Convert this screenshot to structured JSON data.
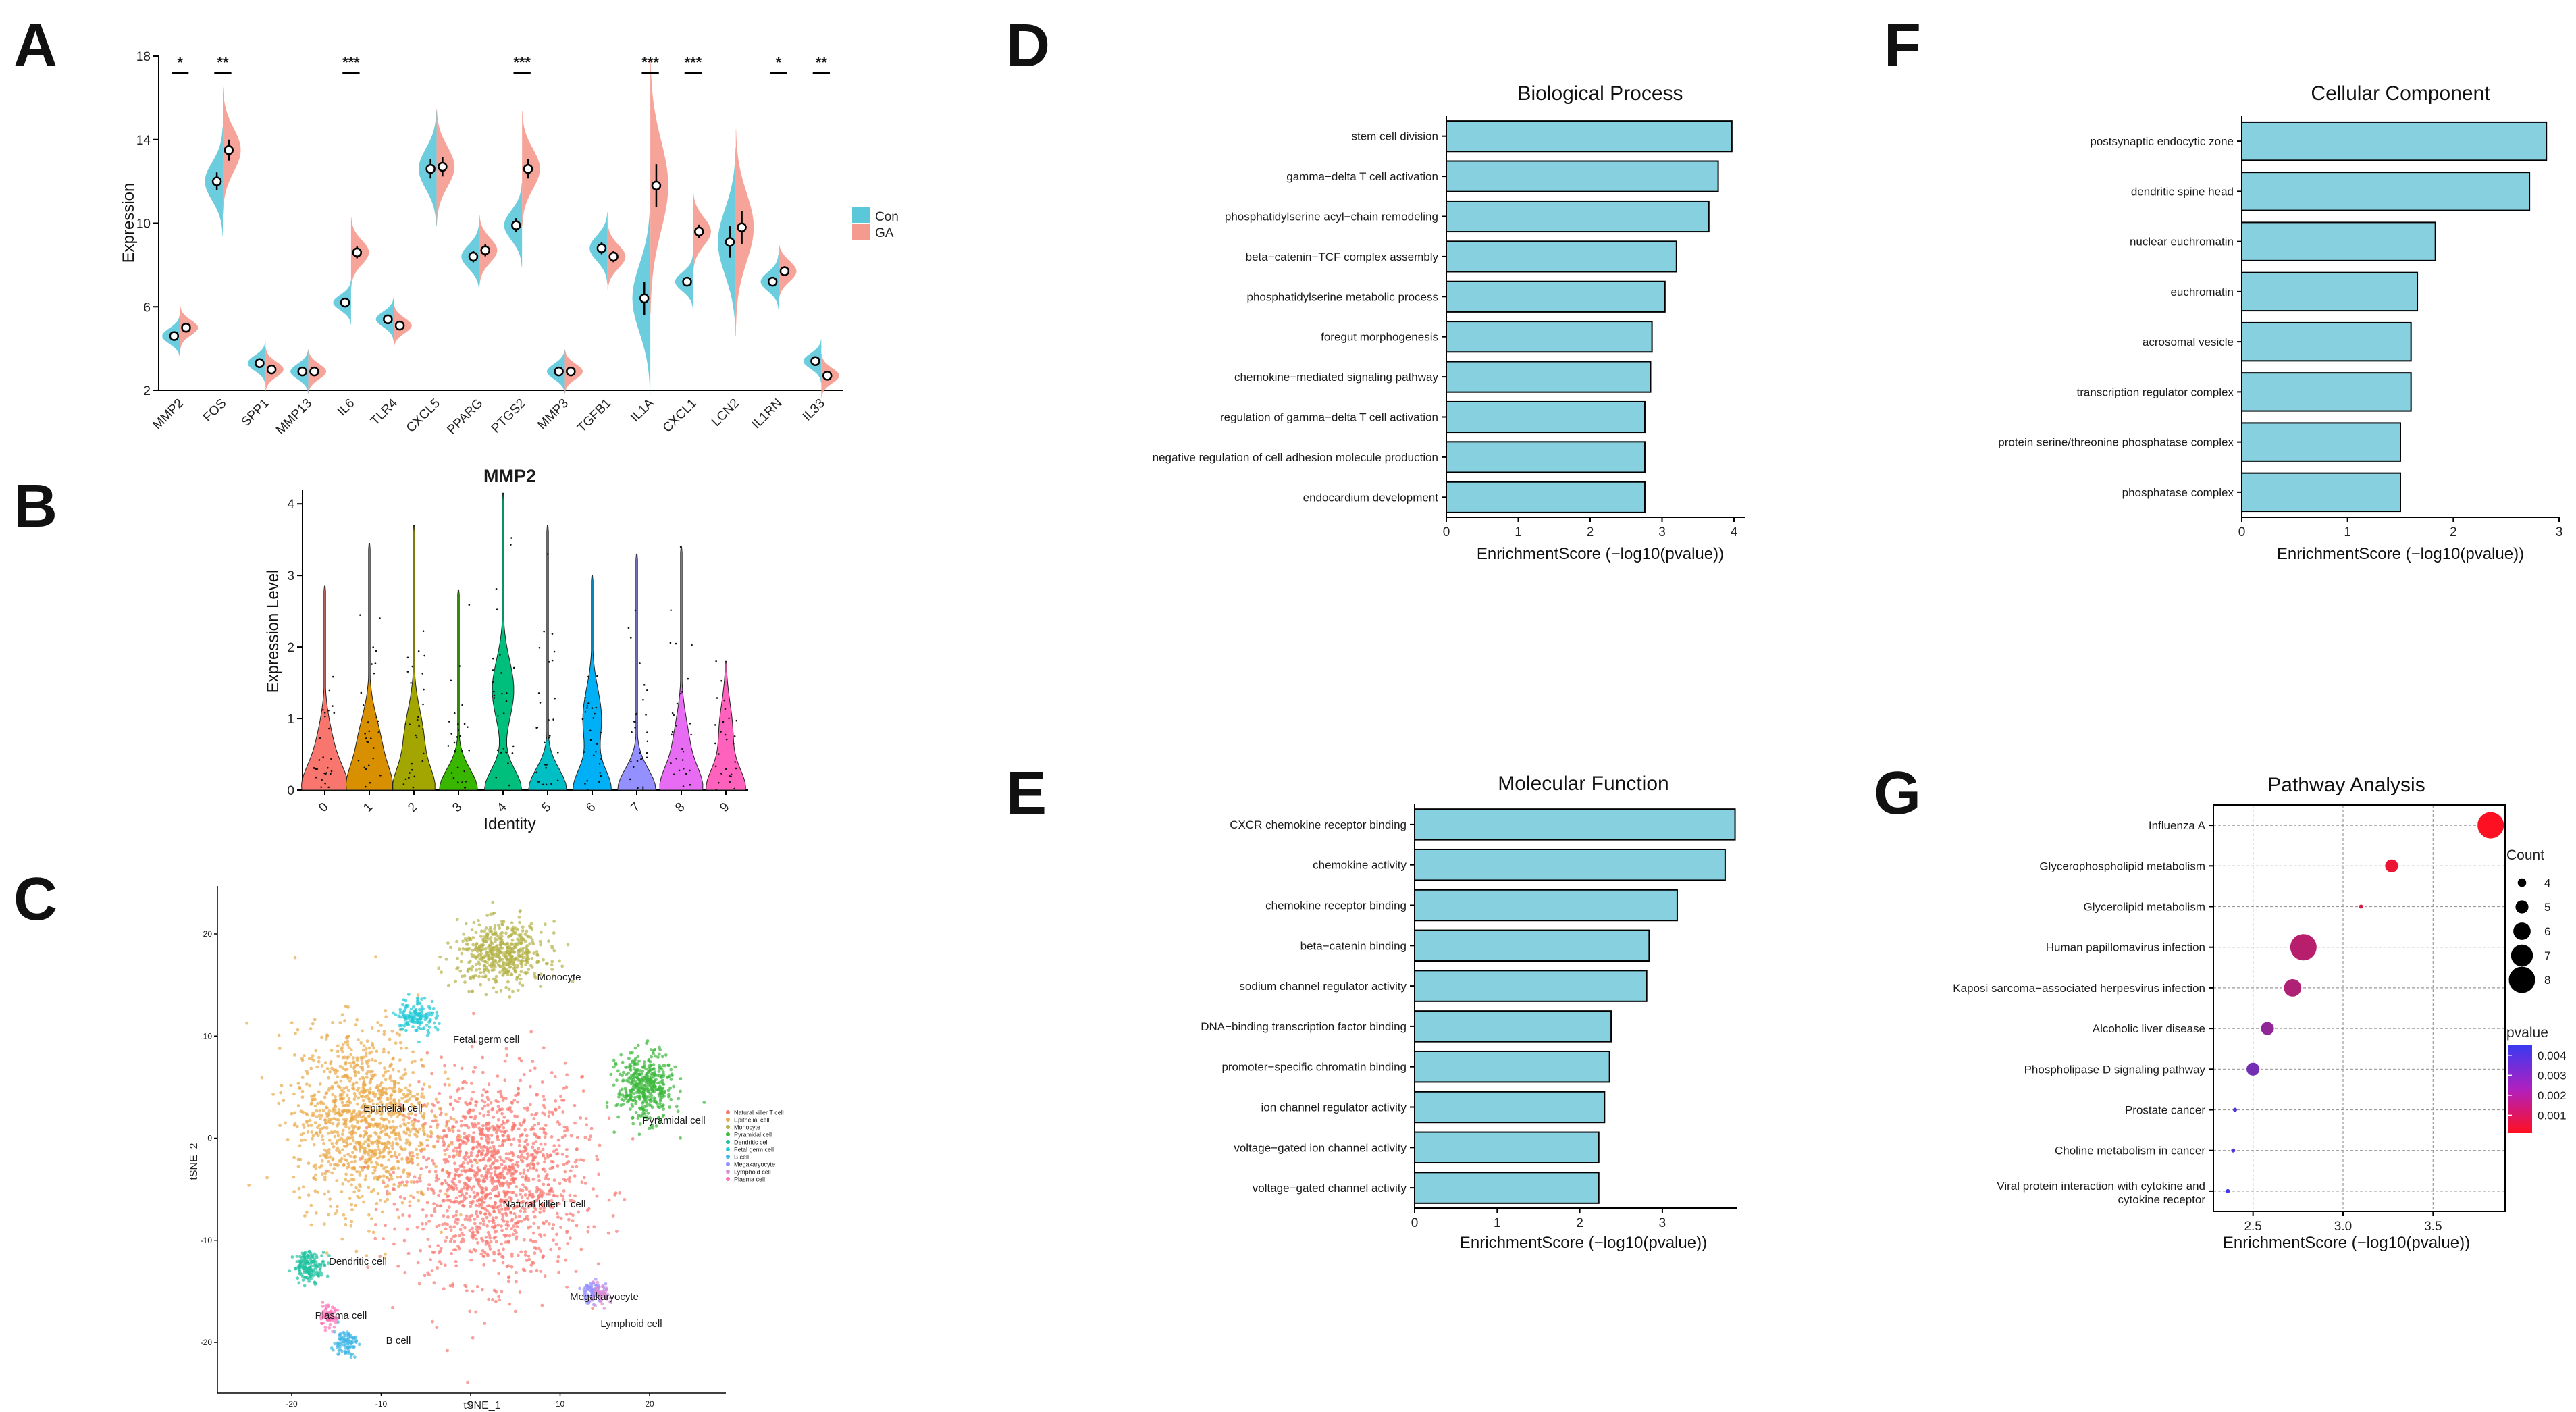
{
  "panel_letters": [
    "A",
    "B",
    "C",
    "D",
    "E",
    "F",
    "G"
  ],
  "chart_data": [
    {
      "id": "A",
      "type": "split-violin",
      "title": "",
      "xlabel": "",
      "ylabel": "Expression",
      "ylim": [
        2,
        18
      ],
      "yticks": [
        2,
        6,
        10,
        14,
        18
      ],
      "categories": [
        "MMP2",
        "FOS",
        "SPP1",
        "MMP13",
        "IL6",
        "TLR4",
        "CXCL5",
        "PPARG",
        "PTGS2",
        "MMP3",
        "TGFB1",
        "IL1A",
        "CXCL1",
        "LCN2",
        "IL1RN",
        "IL33"
      ],
      "significance": [
        "*",
        "**",
        "",
        "",
        "***",
        "",
        "",
        "",
        "***",
        "",
        "",
        "***",
        "***",
        "",
        "*",
        "**"
      ],
      "legend": [
        {
          "name": "Con",
          "color": "#5bc8d9"
        },
        {
          "name": "GA",
          "color": "#f59a8e"
        }
      ],
      "series": [
        {
          "name": "Con",
          "color": "#5bc8d9",
          "values": [
            4.6,
            12.0,
            3.3,
            2.9,
            6.2,
            5.4,
            12.6,
            8.4,
            9.9,
            2.9,
            8.8,
            6.4,
            7.2,
            9.1,
            7.2,
            3.4
          ]
        },
        {
          "name": "GA",
          "color": "#f59a8e",
          "values": [
            5.0,
            13.5,
            3.0,
            2.9,
            8.6,
            5.1,
            12.7,
            8.7,
            12.6,
            2.9,
            8.4,
            11.8,
            9.6,
            9.8,
            7.7,
            2.7
          ]
        }
      ]
    },
    {
      "id": "B",
      "type": "violin",
      "title": "MMP2",
      "xlabel": "Identity",
      "ylabel": "Expression Level",
      "ylim": [
        0,
        4.2
      ],
      "yticks": [
        0,
        1,
        2,
        3,
        4
      ],
      "categories": [
        "0",
        "1",
        "2",
        "3",
        "4",
        "5",
        "6",
        "7",
        "8",
        "9"
      ],
      "max": [
        2.85,
        3.45,
        3.7,
        2.8,
        4.15,
        3.7,
        3.0,
        3.3,
        3.4,
        1.8
      ],
      "colors": [
        "#f8766d",
        "#d89000",
        "#a3a500",
        "#39b600",
        "#00bf7d",
        "#00bfc4",
        "#00b0f6",
        "#9590ff",
        "#e76bf3",
        "#ff62bc"
      ]
    },
    {
      "id": "C",
      "type": "scatter",
      "title": "",
      "xlabel": "tSNE_1",
      "ylabel": "tSNE_2",
      "xticks": [
        -20,
        -10,
        0,
        10,
        20
      ],
      "yticks": [
        20,
        10,
        0,
        -10,
        -20
      ],
      "clusters": [
        "Natural killer T cell",
        "Epithelial cell",
        "Monocyte",
        "Pyramidal cell",
        "Dendritic cell",
        "Fetal germ cell",
        "B cell",
        "Megakaryocyte",
        "Lymphoid cell",
        "Plasma cell"
      ],
      "cluster_colors": [
        "#f8766d",
        "#e9a94a",
        "#b5b44a",
        "#3cb83c",
        "#1fc2a0",
        "#1fc9d6",
        "#41b6e6",
        "#9590ff",
        "#d88bd6",
        "#ff74b8"
      ],
      "cluster_labels": [
        "Monocyte",
        "Fetal germ cell",
        "Epithelial cell",
        "Pyramidal cell",
        "Natural killer T cell",
        "Dendritic cell",
        "Megakaryocyte",
        "Lymphoid cell",
        "Plasma cell",
        "B cell"
      ]
    },
    {
      "id": "D",
      "type": "bar",
      "orientation": "horizontal",
      "title": "Biological Process",
      "xlabel": "EnrichmentScore (−log10(pvalue))",
      "xlim": [
        0,
        4.15
      ],
      "xticks": [
        0,
        1,
        2,
        3,
        4
      ],
      "categories": [
        "stem cell division",
        "gamma−delta T cell activation",
        "phosphatidylserine acyl−chain remodeling",
        "beta−catenin−TCF complex assembly",
        "phosphatidylserine metabolic process",
        "foregut morphogenesis",
        "chemokine−mediated signaling pathway",
        "regulation of gamma−delta T cell activation",
        "negative regulation of cell adhesion molecule production",
        "endocardium development"
      ],
      "values": [
        3.97,
        3.78,
        3.65,
        3.2,
        3.04,
        2.86,
        2.84,
        2.76,
        2.76,
        2.76
      ]
    },
    {
      "id": "E",
      "type": "bar",
      "orientation": "horizontal",
      "title": "Molecular Function",
      "xlabel": "EnrichmentScore (−log10(pvalue))",
      "xlim": [
        0,
        3.9
      ],
      "xticks": [
        0,
        1,
        2,
        3
      ],
      "categories": [
        "CXCR chemokine receptor binding",
        "chemokine activity",
        "chemokine receptor binding",
        "beta−catenin binding",
        "sodium channel regulator activity",
        "DNA−binding transcription factor binding",
        "promoter−specific chromatin binding",
        "ion channel regulator activity",
        "voltage−gated ion channel activity",
        "voltage−gated channel activity"
      ],
      "values": [
        3.88,
        3.76,
        3.18,
        2.84,
        2.81,
        2.38,
        2.36,
        2.3,
        2.23,
        2.23
      ]
    },
    {
      "id": "F",
      "type": "bar",
      "orientation": "horizontal",
      "title": "Cellular Component",
      "xlabel": "EnrichmentScore (−log10(pvalue))",
      "xlim": [
        0,
        3.0
      ],
      "xticks": [
        0,
        1,
        2,
        3
      ],
      "categories": [
        "postsynaptic endocytic zone",
        "dendritic spine head",
        "nuclear euchromatin",
        "euchromatin",
        "acrosomal vesicle",
        "transcription regulator complex",
        "protein serine/threonine phosphatase complex",
        "phosphatase complex"
      ],
      "values": [
        2.88,
        2.72,
        1.83,
        1.66,
        1.6,
        1.6,
        1.5,
        1.5
      ]
    },
    {
      "id": "G",
      "type": "scatter",
      "title": "Pathway Analysis",
      "xlabel": "EnrichmentScore (−log10(pvalue))",
      "xlim": [
        2.28,
        3.9
      ],
      "xticks": [
        2.5,
        3.0,
        3.5
      ],
      "xtick_labels": [
        "2.5",
        "3.0",
        "3.5"
      ],
      "categories": [
        "Influenza A",
        "Glycerophospholipid metabolism",
        "Glycerolipid metabolism",
        "Human papillomavirus infection",
        "Kaposi sarcoma−associated herpesvirus infection",
        "Alcoholic liver disease",
        "Phospholipase D signaling pathway",
        "Prostate cancer",
        "Choline metabolism in cancer",
        "Viral protein interaction with cytokine and cytokine receptor"
      ],
      "x": [
        3.82,
        3.27,
        3.1,
        2.78,
        2.72,
        2.58,
        2.5,
        2.4,
        2.39,
        2.36
      ],
      "count": [
        8,
        5,
        3,
        8,
        6,
        5,
        5,
        3,
        3,
        3
      ],
      "pvalue": [
        0.00015,
        0.00055,
        0.0008,
        0.0017,
        0.0019,
        0.0026,
        0.0032,
        0.004,
        0.0041,
        0.0044
      ],
      "size_legend": {
        "title": "Count",
        "values": [
          4,
          5,
          6,
          7,
          8
        ]
      },
      "color_legend": {
        "title": "pvalue",
        "ticks": [
          0.004,
          0.003,
          0.002,
          0.001
        ],
        "tick_labels": [
          "0.004",
          "0.003",
          "0.002",
          "0.001"
        ]
      }
    }
  ]
}
